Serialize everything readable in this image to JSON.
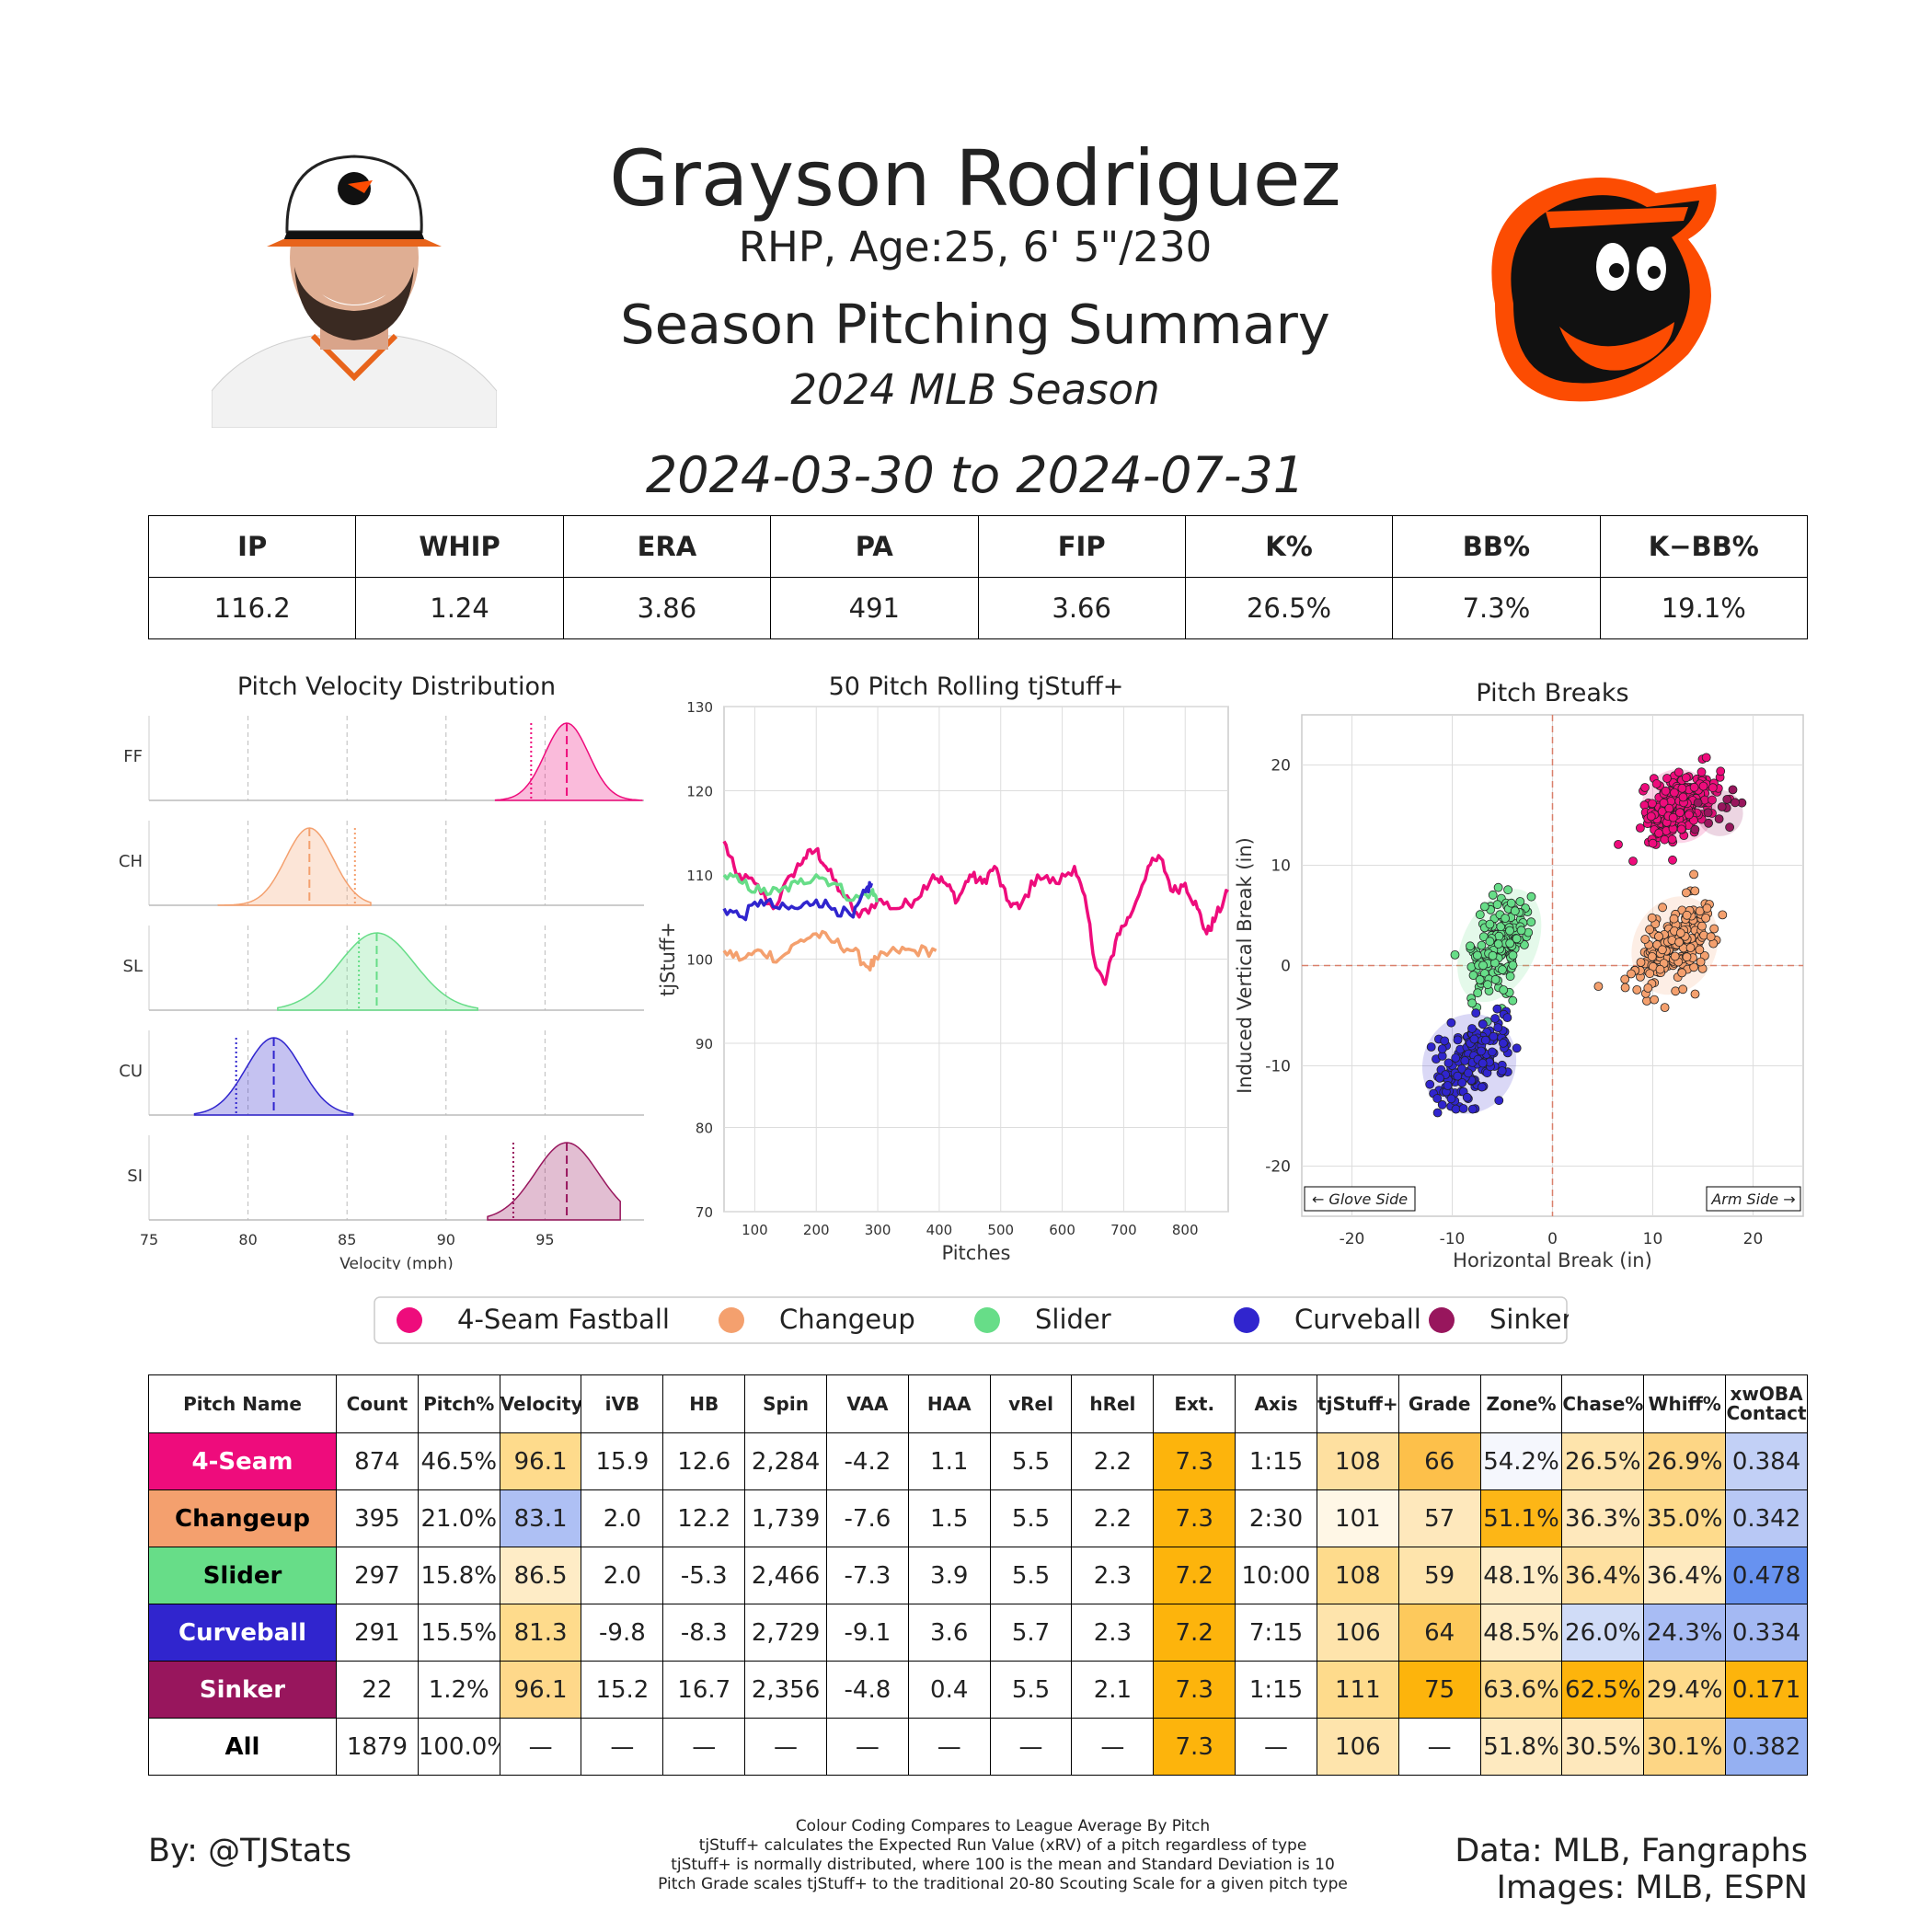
{
  "header": {
    "player_name": "Grayson Rodriguez",
    "player_info": "RHP, Age:25, 6' 5\"/230",
    "summary_title": "Season Pitching Summary",
    "season_label": "2024 MLB Season",
    "date_range": "2024-03-30 to 2024-07-31"
  },
  "season_stats": {
    "headers": [
      "IP",
      "WHIP",
      "ERA",
      "PA",
      "FIP",
      "K%",
      "BB%",
      "K−BB%"
    ],
    "values": [
      "116.2",
      "1.24",
      "3.86",
      "491",
      "3.66",
      "26.5%",
      "7.3%",
      "19.1%"
    ]
  },
  "colors": {
    "4-Seam Fastball": "#ee0c7c",
    "Changeup": "#f4a06e",
    "Slider": "#67dd88",
    "Curveball": "#3025ce",
    "Sinker": "#98165d",
    "team_orange": "#fc4c02"
  },
  "legend": [
    "4-Seam Fastball",
    "Changeup",
    "Slider",
    "Curveball",
    "Sinker"
  ],
  "chart_data": [
    {
      "type": "area",
      "title": "Pitch Velocity Distribution",
      "xlabel": "Velocity (mph)",
      "xlim": [
        75,
        100
      ],
      "xticks": [
        75,
        80,
        85,
        90,
        95
      ],
      "rows": [
        {
          "label": "FF",
          "pitch": "4-Seam Fastball",
          "mean": 96.1,
          "league_mean": 94.3,
          "sd": 1.1,
          "min": 92.5,
          "max": 99.9
        },
        {
          "label": "CH",
          "pitch": "Changeup",
          "mean": 83.1,
          "league_mean": 85.4,
          "sd": 1.2,
          "min": 78.5,
          "max": 86.2
        },
        {
          "label": "SL",
          "pitch": "Slider",
          "mean": 86.5,
          "league_mean": 85.6,
          "sd": 1.9,
          "min": 81.5,
          "max": 91.6
        },
        {
          "label": "CU",
          "pitch": "Curveball",
          "mean": 81.3,
          "league_mean": 79.4,
          "sd": 1.4,
          "min": 77.3,
          "max": 85.3
        },
        {
          "label": "SI",
          "pitch": "Sinker",
          "mean": 96.1,
          "league_mean": 93.4,
          "sd": 1.6,
          "min": 92.1,
          "max": 98.8
        }
      ]
    },
    {
      "type": "line",
      "title": "50 Pitch Rolling tjStuff+",
      "xlabel": "Pitches",
      "ylabel": "tjStuff+",
      "xlim": [
        50,
        870
      ],
      "ylim": [
        70,
        130
      ],
      "xticks": [
        100,
        200,
        300,
        400,
        500,
        600,
        700,
        800
      ],
      "yticks": [
        70,
        80,
        90,
        100,
        110,
        120,
        130
      ],
      "series": [
        {
          "pitch": "4-Seam Fastball",
          "x": [
            50,
            70,
            100,
            130,
            160,
            180,
            200,
            215,
            240,
            270,
            300,
            330,
            360,
            390,
            410,
            430,
            450,
            470,
            490,
            510,
            530,
            560,
            590,
            620,
            640,
            655,
            670,
            690,
            710,
            740,
            760,
            780,
            800,
            820,
            835,
            850,
            870
          ],
          "y": [
            114,
            110,
            109,
            106,
            110,
            112,
            113,
            111,
            108,
            105,
            107,
            106,
            107,
            110,
            109,
            107,
            110,
            109,
            111,
            107,
            106,
            110,
            109,
            111,
            106,
            99,
            97,
            103,
            105,
            111,
            112,
            108,
            109,
            106,
            103,
            105,
            108
          ]
        },
        {
          "pitch": "Changeup",
          "x": [
            50,
            80,
            110,
            140,
            170,
            200,
            230,
            260,
            285,
            300,
            330,
            360,
            395
          ],
          "y": [
            101,
            100,
            101,
            100,
            102,
            103,
            102,
            101,
            99,
            100,
            101,
            101,
            101
          ]
        },
        {
          "pitch": "Slider",
          "x": [
            50,
            80,
            110,
            140,
            170,
            200,
            230,
            260,
            290,
            300
          ],
          "y": [
            110,
            109,
            108,
            108,
            109,
            110,
            109,
            107,
            108,
            107
          ]
        },
        {
          "pitch": "Curveball",
          "x": [
            50,
            80,
            110,
            140,
            170,
            200,
            230,
            260,
            280,
            290
          ],
          "y": [
            106,
            105,
            107,
            106,
            106,
            107,
            106,
            105,
            108,
            109
          ]
        },
        {
          "pitch": "Sinker",
          "x": [],
          "y": []
        }
      ]
    },
    {
      "type": "scatter",
      "title": "Pitch Breaks",
      "xlabel": "Horizontal Break (in)",
      "ylabel": "Induced Vertical Break (in)",
      "xlim": [
        -25,
        25
      ],
      "ylim": [
        -25,
        25
      ],
      "xticks": [
        -20,
        -10,
        0,
        10,
        20
      ],
      "yticks": [
        -20,
        -10,
        0,
        10,
        20
      ],
      "annotations": [
        "← Glove Side",
        "Arm Side →"
      ],
      "clusters": [
        {
          "pitch": "4-Seam Fastball",
          "hb": 12.6,
          "ivb": 15.9,
          "sd_hb": 1.6,
          "sd_ivb": 1.6,
          "n": 300
        },
        {
          "pitch": "Changeup",
          "hb": 12.2,
          "ivb": 2.0,
          "sd_hb": 1.8,
          "sd_ivb": 2.2,
          "n": 200
        },
        {
          "pitch": "Slider",
          "hb": -5.3,
          "ivb": 2.0,
          "sd_hb": 1.6,
          "sd_ivb": 2.6,
          "n": 170
        },
        {
          "pitch": "Curveball",
          "hb": -8.3,
          "ivb": -9.8,
          "sd_hb": 2.0,
          "sd_ivb": 2.2,
          "n": 170
        },
        {
          "pitch": "Sinker",
          "hb": 16.7,
          "ivb": 15.2,
          "sd_hb": 1.0,
          "sd_ivb": 1.0,
          "n": 12
        }
      ]
    }
  ],
  "pitch_table": {
    "headers": [
      "Pitch Name",
      "Count",
      "Pitch%",
      "Velocity",
      "iVB",
      "HB",
      "Spin",
      "VAA",
      "HAA",
      "vRel",
      "hRel",
      "Ext.",
      "Axis",
      "tjStuff+",
      "Grade",
      "Zone%",
      "Chase%",
      "Whiff%",
      "xwOBA Contact"
    ],
    "rows": [
      {
        "name": "4-Seam",
        "name_bg": "#ee0c7c",
        "name_fg": "#ffffff",
        "cells": [
          "874",
          "46.5%",
          "96.1",
          "15.9",
          "12.6",
          "2,284",
          "-4.2",
          "1.1",
          "5.5",
          "2.2",
          "7.3",
          "1:15",
          "108",
          "66",
          "54.2%",
          "26.5%",
          "26.9%",
          "0.384"
        ],
        "bgs": [
          "",
          "",
          "#fedb8c",
          "",
          "",
          "",
          "",
          "",
          "",
          "",
          "#fdb40c",
          "",
          "#fee0a0",
          "#fdc04a",
          "#f5f7fd",
          "#fee4ac",
          "#fdd685",
          "#c2d0f6"
        ]
      },
      {
        "name": "Changeup",
        "name_bg": "#f4a06e",
        "name_fg": "#000000",
        "cells": [
          "395",
          "21.0%",
          "83.1",
          "2.0",
          "12.2",
          "1,739",
          "-7.6",
          "1.5",
          "5.5",
          "2.2",
          "7.3",
          "2:30",
          "101",
          "57",
          "51.1%",
          "36.3%",
          "35.0%",
          "0.342"
        ],
        "bgs": [
          "",
          "",
          "#aec0f4",
          "",
          "",
          "",
          "",
          "",
          "",
          "",
          "#fdb40c",
          "",
          "#fff7e6",
          "#fee8bc",
          "#fdb616",
          "#fee8bc",
          "#fedb8c",
          "#b8c8f5"
        ]
      },
      {
        "name": "Slider",
        "name_bg": "#67dd88",
        "name_fg": "#000000",
        "cells": [
          "297",
          "15.8%",
          "86.5",
          "2.0",
          "-5.3",
          "2,466",
          "-7.3",
          "3.9",
          "5.5",
          "2.3",
          "7.2",
          "10:00",
          "108",
          "59",
          "48.1%",
          "36.4%",
          "36.4%",
          "0.478"
        ],
        "bgs": [
          "",
          "",
          "#feecc6",
          "",
          "",
          "",
          "",
          "",
          "",
          "",
          "#fdb40c",
          "",
          "#fedb8c",
          "#fee4ac",
          "#feecc6",
          "#fee0a0",
          "#feeac0",
          "#6792f0"
        ]
      },
      {
        "name": "Curveball",
        "name_bg": "#3025ce",
        "name_fg": "#ffffff",
        "cells": [
          "291",
          "15.5%",
          "81.3",
          "-9.8",
          "-8.3",
          "2,729",
          "-9.1",
          "3.6",
          "5.7",
          "2.3",
          "7.2",
          "7:15",
          "106",
          "64",
          "48.5%",
          "26.0%",
          "24.3%",
          "0.334"
        ],
        "bgs": [
          "",
          "",
          "#fedb8c",
          "",
          "",
          "",
          "",
          "",
          "",
          "",
          "#fdb40c",
          "",
          "#fee4ac",
          "#fdc95c",
          "#feecc6",
          "#d0dcf7",
          "#a8bcf4",
          "#a4b9f3"
        ]
      },
      {
        "name": "Sinker",
        "name_bg": "#98165d",
        "name_fg": "#ffffff",
        "cells": [
          "22",
          "1.2%",
          "96.1",
          "15.2",
          "16.7",
          "2,356",
          "-4.8",
          "0.4",
          "5.5",
          "2.1",
          "7.3",
          "1:15",
          "111",
          "75",
          "63.6%",
          "62.5%",
          "29.4%",
          "0.171"
        ],
        "bgs": [
          "",
          "",
          "#fed88a",
          "",
          "",
          "",
          "",
          "",
          "",
          "",
          "#fdb40c",
          "",
          "#fedb8c",
          "#fdb40c",
          "#fedb8c",
          "#fdb40c",
          "#feda8a",
          "#fdb40c"
        ]
      },
      {
        "name": "All",
        "name_bg": "#ffffff",
        "name_fg": "#000000",
        "cells": [
          "1879",
          "100.0%",
          "—",
          "—",
          "—",
          "—",
          "—",
          "—",
          "—",
          "—",
          "7.3",
          "—",
          "106",
          "—",
          "51.8%",
          "30.5%",
          "30.1%",
          "0.382"
        ],
        "bgs": [
          "",
          "",
          "",
          "",
          "",
          "",
          "",
          "",
          "",
          "",
          "#fdb40c",
          "",
          "#fee4ac",
          "",
          "#feeac0",
          "#fee8bc",
          "#fdd685",
          "#95b0f2"
        ]
      }
    ]
  },
  "footer": {
    "by": "By: @TJStats",
    "data_line": "Data: MLB, Fangraphs",
    "images_line": "Images: MLB, ESPN",
    "notes": [
      "Colour Coding Compares to League Average By Pitch",
      "tjStuff+ calculates the Expected Run Value (xRV) of a pitch regardless of type",
      "tjStuff+ is normally distributed, where 100 is the mean and Standard Deviation is 10",
      "Pitch Grade scales tjStuff+ to the traditional 20-80 Scouting Scale for a given pitch type"
    ]
  }
}
